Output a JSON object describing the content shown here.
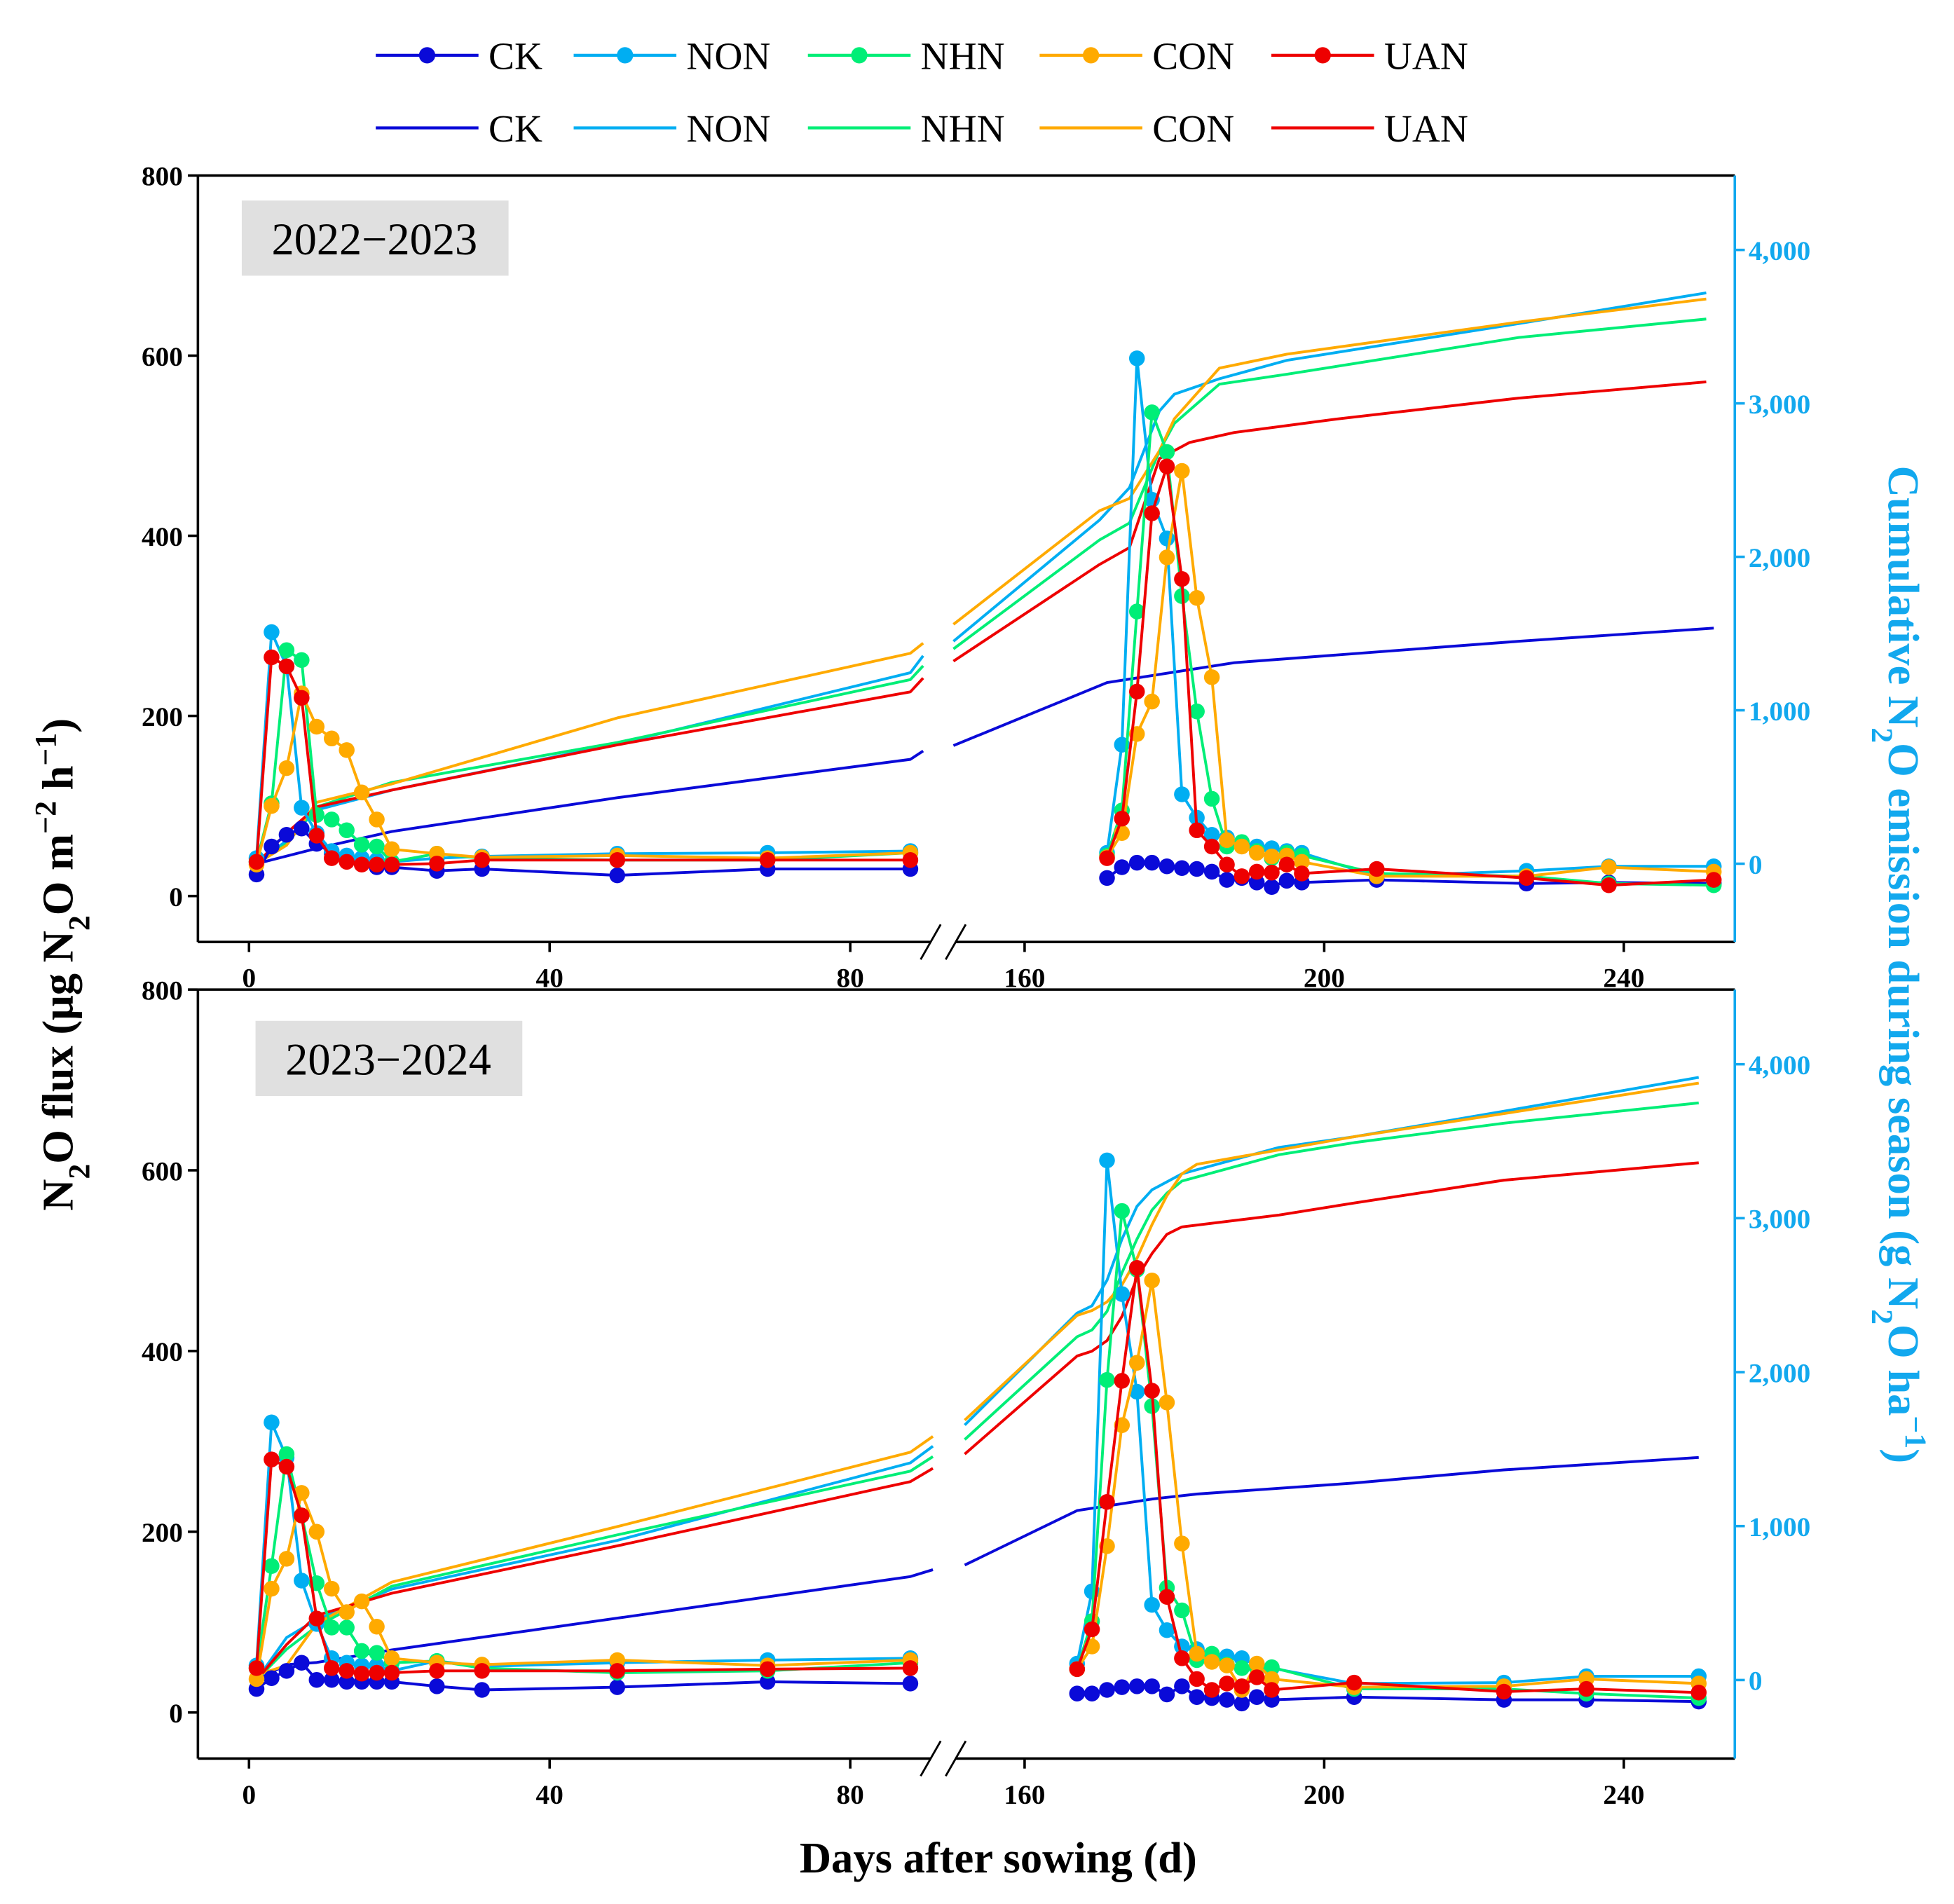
{
  "legend": {
    "rows": [
      {
        "style": "line-marker",
        "items": [
          "CK",
          "NON",
          "NHN",
          "CON",
          "UAN"
        ]
      },
      {
        "style": "line",
        "items": [
          "CK",
          "NON",
          "NHN",
          "CON",
          "UAN"
        ]
      }
    ]
  },
  "colors": {
    "CK": "#0a0ad8",
    "NON": "#00aef2",
    "NHN": "#00ee77",
    "CON": "#ffaa00",
    "UAN": "#ee0000",
    "right_axis": "#12a8ee"
  },
  "axes": {
    "ylabel_left": "N2O flux (μg N2O m−2 h−1)",
    "ylabel_right": "Cumulative N2O emission during season (g N2O ha−1)",
    "xlabel": "Days after sowing (d)",
    "left_ticks": [
      "0",
      "200",
      "400",
      "600",
      "800"
    ],
    "right_ticks": [
      "0",
      "1,000",
      "2,000",
      "3,000",
      "4,000"
    ],
    "x_ticks": [
      "0",
      "40",
      "80",
      "160",
      "200",
      "240"
    ],
    "x_break": [
      91.5,
      150
    ],
    "xlim": [
      -6.8,
      254.8
    ],
    "ylim_left": [
      -51,
      800
    ],
    "ylim_right": [
      -510,
      4485
    ]
  },
  "chart_data": [
    {
      "type": "line",
      "title": "2022−2023",
      "flux_days": [
        1,
        3,
        5,
        7,
        9,
        11,
        13,
        15,
        17,
        19,
        25,
        31,
        49,
        69,
        88,
        171,
        173,
        175,
        177,
        179,
        181,
        183,
        185,
        187,
        189,
        191,
        193,
        195,
        197,
        207,
        227,
        238,
        252
      ],
      "series": [
        {
          "name": "CK",
          "flux": [
            24,
            55,
            68,
            75,
            58,
            48,
            40,
            36,
            32,
            32,
            28,
            30,
            23,
            30,
            30,
            20,
            32,
            37,
            37,
            33,
            31,
            30,
            27,
            18,
            20,
            15,
            10,
            17,
            15,
            18,
            14,
            15,
            14
          ],
          "cum_days": [
            1,
            5,
            9,
            19,
            49,
            88,
            89.7,
            150.5,
            171,
            188,
            226,
            252
          ],
          "cum": [
            0,
            50,
            100,
            210,
            430,
            680,
            735,
            770,
            1180,
            1310,
            1450,
            1535
          ]
        },
        {
          "name": "NON",
          "flux": [
            42,
            293,
            255,
            98,
            70,
            50,
            45,
            42,
            40,
            38,
            42,
            44,
            47,
            48,
            50,
            48,
            168,
            597,
            440,
            397,
            113,
            87,
            68,
            65,
            58,
            55,
            53,
            50,
            48,
            22,
            28,
            33,
            33
          ],
          "cum_days": [
            1,
            5,
            9,
            19,
            49,
            88,
            89.7,
            150.5,
            170,
            174,
            178,
            180,
            186,
            195,
            226,
            251
          ],
          "cum": [
            0,
            150,
            350,
            480,
            780,
            1245,
            1355,
            1450,
            2240,
            2450,
            2950,
            3060,
            3160,
            3280,
            3520,
            3720
          ]
        },
        {
          "name": "NHN",
          "flux": [
            38,
            103,
            273,
            262,
            90,
            85,
            73,
            57,
            55,
            38,
            47,
            42,
            40,
            40,
            48,
            45,
            95,
            316,
            537,
            493,
            333,
            205,
            108,
            55,
            60,
            50,
            42,
            48,
            45,
            25,
            22,
            14,
            12
          ],
          "cum_days": [
            1,
            5,
            9,
            19,
            49,
            88,
            89.7,
            150.5,
            170,
            174,
            178,
            180,
            186,
            195,
            226,
            251
          ],
          "cum": [
            0,
            130,
            370,
            530,
            790,
            1200,
            1290,
            1400,
            2110,
            2220,
            2690,
            2870,
            3125,
            3190,
            3430,
            3550
          ]
        },
        {
          "name": "CON",
          "flux": [
            35,
            100,
            142,
            225,
            188,
            175,
            162,
            115,
            85,
            52,
            47,
            43,
            45,
            42,
            48,
            43,
            70,
            180,
            216,
            376,
            472,
            331,
            243,
            62,
            55,
            48,
            44,
            45,
            38,
            22,
            22,
            32,
            27
          ],
          "cum_days": [
            1,
            5,
            9,
            19,
            49,
            88,
            89.7,
            150.5,
            170,
            174,
            178,
            180,
            186,
            195,
            226,
            251
          ],
          "cum": [
            0,
            120,
            400,
            520,
            950,
            1371,
            1437,
            1560,
            2300,
            2380,
            2690,
            2900,
            3230,
            3320,
            3530,
            3680
          ]
        },
        {
          "name": "UAN",
          "flux": [
            38,
            265,
            255,
            220,
            67,
            42,
            38,
            35,
            35,
            35,
            36,
            40,
            40,
            40,
            40,
            42,
            86,
            227,
            425,
            477,
            352,
            73,
            55,
            35,
            22,
            27,
            26,
            35,
            25,
            30,
            20,
            12,
            18
          ],
          "cum_days": [
            1,
            5,
            9,
            19,
            49,
            88,
            89.7,
            150.5,
            170,
            174,
            178,
            182,
            188,
            202,
            226,
            251
          ],
          "cum": [
            0,
            200,
            370,
            480,
            775,
            1120,
            1210,
            1320,
            1950,
            2060,
            2640,
            2745,
            2810,
            2900,
            3035,
            3140
          ]
        }
      ]
    },
    {
      "type": "line",
      "title": "2023−2024",
      "flux_days": [
        1,
        3,
        5,
        7,
        9,
        11,
        13,
        15,
        17,
        19,
        25,
        31,
        49,
        69,
        88,
        167,
        169,
        171,
        173,
        175,
        177,
        179,
        181,
        183,
        185,
        187,
        189,
        191,
        193,
        204,
        224,
        235,
        250
      ],
      "series": [
        {
          "name": "CK",
          "flux": [
            26,
            38,
            46,
            55,
            36,
            36,
            34,
            34,
            34,
            34,
            29,
            25,
            28,
            34,
            32,
            21,
            21,
            25,
            28,
            29,
            29,
            20,
            29,
            17,
            16,
            14,
            10,
            17,
            14,
            17,
            14,
            14,
            12
          ],
          "cum_days": [
            1,
            5,
            9,
            19,
            49,
            88,
            91,
            152,
            167,
            177,
            183,
            204,
            224,
            250
          ],
          "cum": [
            0,
            100,
            114,
            195,
            402,
            672,
            717,
            747,
            1101,
            1176,
            1208,
            1280,
            1365,
            1446
          ]
        },
        {
          "name": "NON",
          "flux": [
            52,
            321,
            282,
            146,
            98,
            60,
            55,
            52,
            52,
            46,
            57,
            51,
            55,
            58,
            60,
            54,
            134,
            611,
            463,
            355,
            119,
            91,
            73,
            70,
            64,
            62,
            60,
            52,
            49,
            32,
            33,
            40,
            40
          ],
          "cum_days": [
            1,
            5,
            9,
            19,
            49,
            88,
            91,
            152,
            167,
            169,
            171,
            173,
            175,
            177,
            181,
            194,
            204,
            224,
            250
          ],
          "cum": [
            0,
            276,
            393,
            591,
            907,
            1411,
            1519,
            1656,
            2384,
            2431,
            2597,
            2864,
            3077,
            3184,
            3288,
            3460,
            3529,
            3695,
            3915
          ]
        },
        {
          "name": "NHN",
          "flux": [
            49,
            162,
            286,
            218,
            143,
            94,
            94,
            68,
            66,
            55,
            57,
            49,
            44,
            46,
            55,
            48,
            101,
            368,
            555,
            490,
            339,
            138,
            113,
            58,
            65,
            53,
            49,
            49,
            50,
            26,
            26,
            21,
            16
          ],
          "cum_days": [
            1,
            5,
            9,
            19,
            49,
            88,
            91,
            152,
            167,
            169,
            171,
            173,
            175,
            177,
            179,
            181,
            194,
            204,
            224,
            250
          ],
          "cum": [
            0,
            200,
            348,
            609,
            943,
            1357,
            1451,
            1562,
            2230,
            2274,
            2394,
            2645,
            2864,
            3052,
            3162,
            3241,
            3413,
            3491,
            3617,
            3749
          ]
        },
        {
          "name": "CON",
          "flux": [
            37,
            137,
            170,
            243,
            200,
            137,
            111,
            123,
            95,
            60,
            55,
            53,
            58,
            52,
            58,
            48,
            73,
            184,
            318,
            387,
            478,
            343,
            187,
            65,
            56,
            52,
            25,
            54,
            37,
            28,
            29,
            37,
            32
          ],
          "cum_days": [
            1,
            5,
            9,
            19,
            49,
            88,
            91,
            152,
            167,
            169,
            171,
            173,
            175,
            177,
            179,
            181,
            183,
            204,
            224,
            250
          ],
          "cum": [
            32,
            95,
            366,
            636,
            997,
            1480,
            1582,
            1688,
            2368,
            2400,
            2456,
            2566,
            2739,
            2958,
            3146,
            3288,
            3350,
            3529,
            3680,
            3877
          ]
        },
        {
          "name": "UAN",
          "flux": [
            49,
            280,
            272,
            218,
            104,
            49,
            46,
            43,
            44,
            44,
            46,
            46,
            46,
            48,
            49,
            48,
            92,
            233,
            367,
            492,
            356,
            128,
            60,
            37,
            25,
            32,
            29,
            39,
            25,
            33,
            23,
            26,
            22
          ],
          "cum_days": [
            1,
            5,
            9,
            19,
            49,
            88,
            91,
            152,
            167,
            169,
            171,
            173,
            175,
            177,
            179,
            181,
            194,
            204,
            224,
            250
          ],
          "cum": [
            0,
            230,
            420,
            564,
            871,
            1289,
            1375,
            1468,
            2105,
            2136,
            2205,
            2362,
            2613,
            2770,
            2895,
            2943,
            3021,
            3099,
            3247,
            3360
          ]
        }
      ]
    }
  ]
}
